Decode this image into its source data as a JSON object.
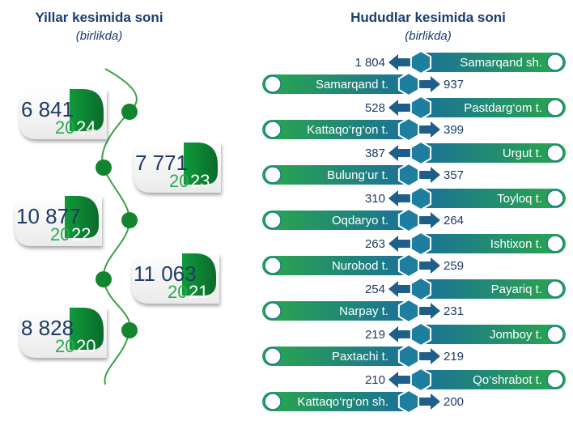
{
  "left": {
    "title": "Yillar kesimida soni",
    "subtitle": "(birlikda)"
  },
  "right": {
    "title": "Hududlar kesimida soni",
    "subtitle": "(birlikda)"
  },
  "colors": {
    "green": "#1a9a3c",
    "teal": "#1e7ea0",
    "dark_text": "#1f3b63",
    "accent_green": "#2fa84f"
  },
  "chart_data": [
    {
      "type": "bar",
      "title": "Yillar kesimida soni",
      "subtitle": "(birlikda)",
      "categories": [
        "2024",
        "2023",
        "2022",
        "2021",
        "2020"
      ],
      "values": [
        6841,
        7771,
        10877,
        11063,
        8828
      ],
      "value_labels": [
        "6 841",
        "7 771",
        "10 877",
        "11 063",
        "8 828"
      ]
    },
    {
      "type": "bar",
      "title": "Hududlar kesimida soni",
      "subtitle": "(birlikda)",
      "categories": [
        "Samarqand sh.",
        "Samarqand t.",
        "Pastdarg‘om t.",
        "Kattaqo‘rg‘on t.",
        "Urgut t.",
        "Bulung‘ur t.",
        "Toyloq t.",
        "Oqdaryo t.",
        "Ishtixon t.",
        "Nurobod t.",
        "Payariq t.",
        "Narpay t.",
        "Jomboy t.",
        "Paxtachi t.",
        "Qo‘shrabot t.",
        "Kattaqo‘rg‘on sh."
      ],
      "values": [
        1804,
        937,
        528,
        399,
        387,
        357,
        310,
        264,
        263,
        259,
        254,
        231,
        219,
        219,
        210,
        200
      ],
      "value_labels": [
        "1 804",
        "937",
        "528",
        "399",
        "387",
        "357",
        "310",
        "264",
        "263",
        "259",
        "254",
        "231",
        "219",
        "219",
        "210",
        "200"
      ]
    }
  ]
}
